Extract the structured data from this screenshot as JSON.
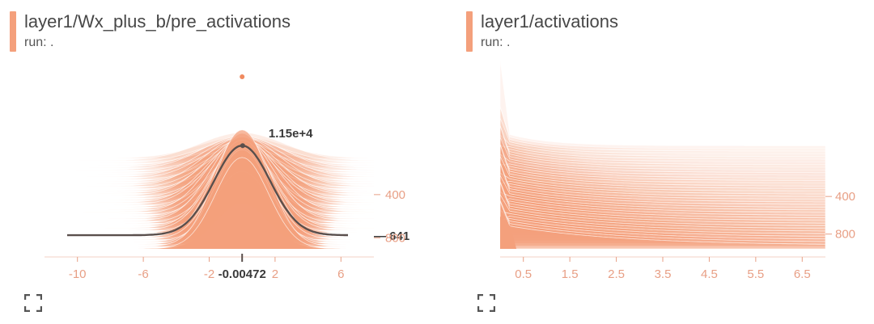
{
  "colors": {
    "accent": "#f4a07c",
    "ridge_fill": "#f4a07c",
    "ridge_line": "#ffffff",
    "highlight_line": "#5a4f4c",
    "tick": "#e89f85",
    "title": "#474747"
  },
  "icons": {
    "expand": "fullscreen-expand-icon"
  },
  "chart_data": [
    {
      "type": "histogram",
      "title": "layer1/Wx_plus_b/pre_activations",
      "run_label": "run: .",
      "x_ticks": [
        "-10",
        "-6",
        "-2",
        "2",
        "6"
      ],
      "x_tick_values": [
        -10,
        -6,
        -2,
        2,
        6
      ],
      "xlim": [
        -12,
        8
      ],
      "y_ticks": [
        "400",
        "800"
      ],
      "y_tick_values": [
        400,
        800
      ],
      "step_range": [
        0,
        1000
      ],
      "highlight": {
        "step": "641",
        "x_label": "-0.00472",
        "peak_label": "1.15e+4",
        "center": 0,
        "sigma": 1.7,
        "peak_count": 11500
      },
      "max_count": 17000
    },
    {
      "type": "histogram",
      "title": "layer1/activations",
      "run_label": "run: .",
      "x_ticks": [
        "0.5",
        "1.5",
        "2.5",
        "3.5",
        "4.5",
        "5.5",
        "6.5"
      ],
      "x_tick_values": [
        0.5,
        1.5,
        2.5,
        3.5,
        4.5,
        5.5,
        6.5
      ],
      "xlim": [
        0,
        7
      ],
      "y_ticks": [
        "400",
        "800"
      ],
      "y_tick_values": [
        400,
        800
      ],
      "step_range": [
        0,
        1000
      ]
    }
  ]
}
